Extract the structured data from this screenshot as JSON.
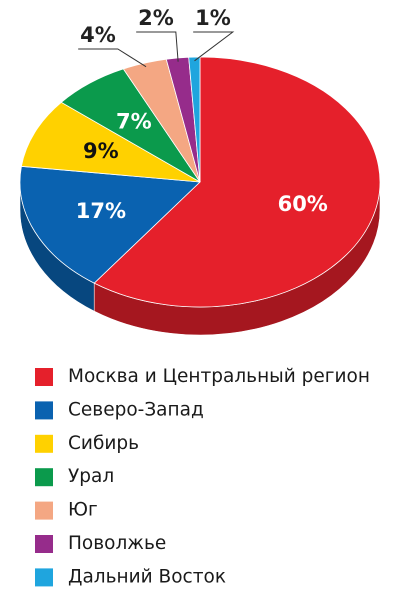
{
  "chart_data": {
    "type": "pie",
    "categories": [
      "Москва и Центральный регион",
      "Северо-Запад",
      "Сибирь",
      "Урал",
      "Юг",
      "Поволжье",
      "Дальний Восток"
    ],
    "values": [
      60,
      17,
      9,
      7,
      4,
      2,
      1
    ],
    "value_labels": [
      "60%",
      "17%",
      "9%",
      "7%",
      "4%",
      "2%",
      "1%"
    ],
    "colors": [
      "#e5202b",
      "#0a62b0",
      "#ffd100",
      "#0b9a4c",
      "#f4a783",
      "#962c8b",
      "#1fa5de"
    ],
    "legend": "bottom"
  }
}
